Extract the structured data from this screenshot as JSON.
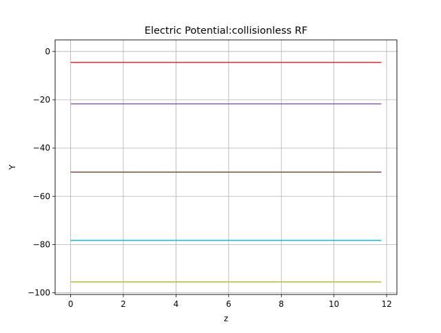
{
  "chart_data": {
    "type": "line",
    "title": "Electric Potential:collisionless RF",
    "xlabel": "z",
    "ylabel": "Y",
    "xlim": [
      -0.59,
      12.39
    ],
    "ylim": [
      -100.7,
      4.8
    ],
    "xticks": [
      0,
      2,
      4,
      6,
      8,
      10,
      12
    ],
    "yticks": [
      0,
      -20,
      -40,
      -60,
      -80,
      -100
    ],
    "xtick_labels": [
      "0",
      "2",
      "4",
      "6",
      "8",
      "10",
      "12"
    ],
    "ytick_labels": [
      "0",
      "−20",
      "−40",
      "−60",
      "−80",
      "−100"
    ],
    "grid": true,
    "legend": "none",
    "x": [
      0,
      11.8
    ],
    "series": [
      {
        "values": [
          -4.5,
          -4.5
        ],
        "color": "#d62728"
      },
      {
        "values": [
          -21.7,
          -21.7
        ],
        "color": "#9467bd"
      },
      {
        "values": [
          -50.0,
          -50.0
        ],
        "color": "#8c564b"
      },
      {
        "values": [
          -78.3,
          -78.3
        ],
        "color": "#17becf"
      },
      {
        "values": [
          -95.5,
          -95.5
        ],
        "color": "#bcbd22"
      }
    ]
  }
}
